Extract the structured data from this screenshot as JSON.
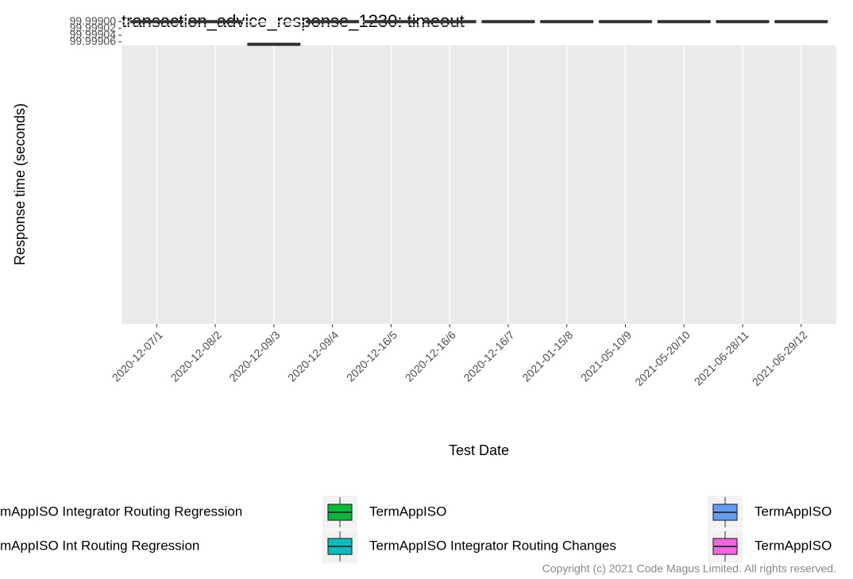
{
  "chart_data": {
    "type": "box",
    "title": "transaction_advice_response_1230: timeout",
    "x_label": "Test Date",
    "y_label": "Response time (seconds)",
    "categories": [
      "2020-12-07/1",
      "2020-12-08/2",
      "2020-12-09/3",
      "2020-12-09/4",
      "2020-12-16/5",
      "2020-12-16/6",
      "2020-12-16/7",
      "2021-01-15/8",
      "2021-05-10/9",
      "2021-05-20/10",
      "2021-06-28/11",
      "2021-06-29/12"
    ],
    "values": [
      99.999,
      99.999,
      99.999067,
      99.999,
      99.999,
      99.999,
      99.999,
      99.999,
      99.999,
      99.999,
      99.999,
      99.999
    ],
    "color": "#333333",
    "ylim": [
      99.999897,
      99.99907
    ],
    "yticks": [
      {
        "value": 99.999,
        "label": "99.99900"
      },
      99.99902,
      99.99904,
      99.99906
    ],
    "grid": true,
    "legend": [
      {
        "name": "mAppISO Integrator Routing Regression",
        "color": "#F8766D"
      },
      {
        "name": "mAppISO Int Routing Regression",
        "color": "#B79F00"
      },
      {
        "name": "TermAppISO",
        "color": "#00BA38"
      },
      {
        "name": "TermAppISO Integrator Routing Changes",
        "color": "#00BFC4"
      },
      {
        "name": "TermAppISO",
        "color": "#619CFF"
      },
      {
        "name": "TermAppISO",
        "color": "#F564E3"
      }
    ],
    "copyright": "Copyright (c) 2021 Code Magus Limited. All rights reserved."
  }
}
